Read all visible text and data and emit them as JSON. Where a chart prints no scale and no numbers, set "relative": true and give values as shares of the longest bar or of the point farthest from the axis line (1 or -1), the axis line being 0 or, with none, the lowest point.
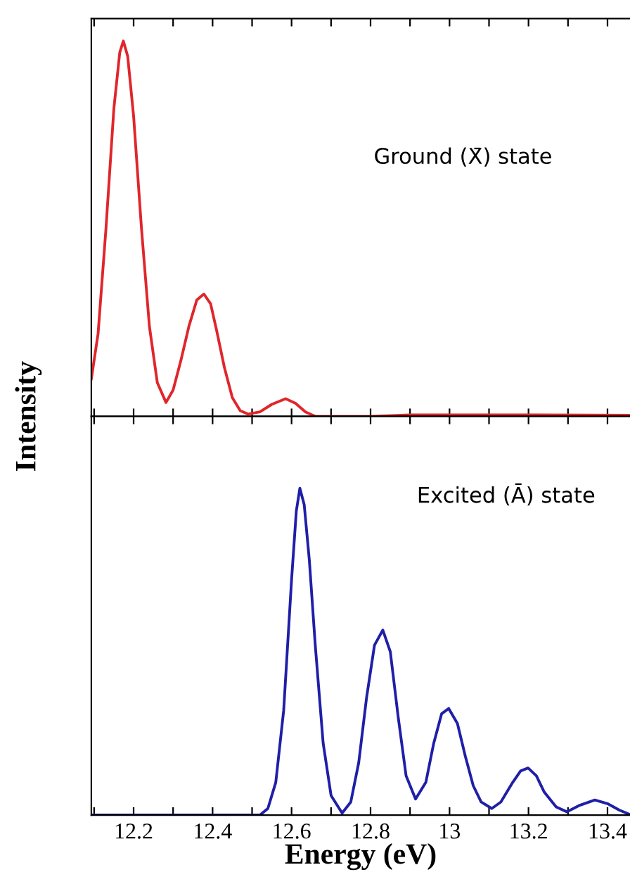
{
  "chart_data": [
    {
      "type": "line",
      "relative": true,
      "ylabel": "Intensity",
      "annotations": [
        "Ground (X̄) state"
      ],
      "tick_labels": false,
      "grid": false,
      "legend": false,
      "marker": "none",
      "line_style": "solid",
      "xlim": [
        12.093,
        13.457
      ],
      "xticks": [
        {
          "value": 12.1,
          "label": null
        },
        {
          "value": 12.2,
          "label": null
        },
        {
          "value": 12.3,
          "label": null
        },
        {
          "value": 12.4,
          "label": null
        },
        {
          "value": 12.5,
          "label": null
        },
        {
          "value": 12.6,
          "label": null
        },
        {
          "value": 12.7,
          "label": null
        },
        {
          "value": 12.8,
          "label": null
        },
        {
          "value": 12.9,
          "label": null
        },
        {
          "value": 13.0,
          "label": null
        },
        {
          "value": 13.1,
          "label": null
        },
        {
          "value": 13.2,
          "label": null
        },
        {
          "value": 13.3,
          "label": null
        },
        {
          "value": 13.4,
          "label": null
        }
      ],
      "series": [
        {
          "color": "#e0262b",
          "x": [
            12.093,
            12.11,
            12.13,
            12.15,
            12.165,
            12.174,
            12.185,
            12.2,
            12.22,
            12.24,
            12.26,
            12.282,
            12.3,
            12.32,
            12.34,
            12.36,
            12.378,
            12.395,
            12.41,
            12.43,
            12.45,
            12.47,
            12.49,
            12.52,
            12.55,
            12.585,
            12.61,
            12.635,
            12.66,
            12.8,
            12.9,
            13.2,
            13.457
          ],
          "values": [
            0.1,
            0.22,
            0.5,
            0.82,
            0.97,
            1.0,
            0.96,
            0.8,
            0.5,
            0.24,
            0.09,
            0.037,
            0.07,
            0.15,
            0.24,
            0.31,
            0.326,
            0.3,
            0.23,
            0.13,
            0.05,
            0.015,
            0.006,
            0.012,
            0.032,
            0.047,
            0.035,
            0.012,
            0.0,
            0.0,
            0.004,
            0.004,
            0.003
          ]
        }
      ]
    },
    {
      "type": "line",
      "relative": true,
      "xlabel": "Energy (eV)",
      "annotations": [
        "Excited (Ā) state"
      ],
      "tick_labels": "x",
      "grid": false,
      "legend": false,
      "marker": "none",
      "line_style": "solid",
      "xlim": [
        12.093,
        13.457
      ],
      "xticks": [
        {
          "value": 12.1,
          "label": null
        },
        12.2,
        {
          "value": 12.3,
          "label": null
        },
        12.4,
        {
          "value": 12.5,
          "label": null
        },
        12.6,
        {
          "value": 12.7,
          "label": null
        },
        12.8,
        {
          "value": 12.9,
          "label": null
        },
        {
          "value": 13.0,
          "label": "13"
        },
        {
          "value": 13.1,
          "label": null
        },
        13.2,
        {
          "value": 13.3,
          "label": null
        },
        13.4
      ],
      "series": [
        {
          "color": "#1f1fa8",
          "x": [
            12.093,
            12.52,
            12.54,
            12.56,
            12.58,
            12.6,
            12.612,
            12.621,
            12.632,
            12.645,
            12.66,
            12.68,
            12.7,
            12.728,
            12.75,
            12.77,
            12.79,
            12.81,
            12.831,
            12.85,
            12.87,
            12.89,
            12.914,
            12.94,
            12.96,
            12.98,
            12.998,
            13.02,
            13.04,
            13.06,
            13.08,
            13.107,
            13.13,
            13.16,
            13.18,
            13.199,
            13.22,
            13.24,
            13.27,
            13.297,
            13.33,
            13.368,
            13.4,
            13.43,
            13.456
          ],
          "values": [
            0.0,
            0.0,
            0.02,
            0.1,
            0.32,
            0.72,
            0.93,
            1.0,
            0.95,
            0.78,
            0.52,
            0.22,
            0.06,
            0.006,
            0.04,
            0.16,
            0.36,
            0.52,
            0.566,
            0.5,
            0.3,
            0.12,
            0.049,
            0.1,
            0.22,
            0.31,
            0.326,
            0.28,
            0.18,
            0.09,
            0.04,
            0.02,
            0.04,
            0.1,
            0.135,
            0.144,
            0.12,
            0.07,
            0.025,
            0.01,
            0.03,
            0.046,
            0.035,
            0.015,
            0.002
          ]
        }
      ]
    }
  ]
}
